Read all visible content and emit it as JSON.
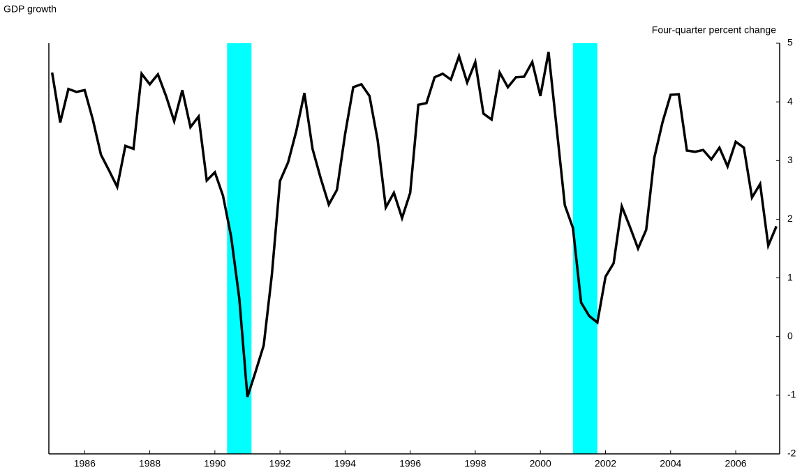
{
  "chart_data": {
    "type": "line",
    "title": "GDP growth",
    "y_axis_label": "Four-quarter percent change",
    "x": [
      1985,
      1985.25,
      1985.5,
      1985.75,
      1986,
      1986.25,
      1986.5,
      1986.75,
      1987,
      1987.25,
      1987.5,
      1987.75,
      1988,
      1988.25,
      1988.5,
      1988.75,
      1989,
      1989.25,
      1989.5,
      1989.75,
      1990,
      1990.25,
      1990.5,
      1990.75,
      1991,
      1991.25,
      1991.5,
      1991.75,
      1992,
      1992.25,
      1992.5,
      1992.75,
      1993,
      1993.25,
      1993.5,
      1993.75,
      1994,
      1994.25,
      1994.5,
      1994.75,
      1995,
      1995.25,
      1995.5,
      1995.75,
      1996,
      1996.25,
      1996.5,
      1996.75,
      1997,
      1997.25,
      1997.5,
      1997.75,
      1998,
      1998.25,
      1998.5,
      1998.75,
      1999,
      1999.25,
      1999.5,
      1999.75,
      2000,
      2000.25,
      2000.5,
      2000.75,
      2001,
      2001.25,
      2001.5,
      2001.75,
      2002,
      2002.25,
      2002.5,
      2002.75,
      2003,
      2003.25,
      2003.5,
      2003.75,
      2004,
      2004.25,
      2004.5,
      2004.75,
      2005,
      2005.25,
      2005.5,
      2005.75,
      2006,
      2006.25,
      2006.5,
      2006.75,
      2007,
      2007.25
    ],
    "series": [
      {
        "color": "#000000",
        "values": [
          4.5,
          3.65,
          4.22,
          4.17,
          4.2,
          3.7,
          3.1,
          2.83,
          2.55,
          3.25,
          3.2,
          4.48,
          4.3,
          4.47,
          4.1,
          3.67,
          4.2,
          3.57,
          3.75,
          2.66,
          2.8,
          2.4,
          1.7,
          0.65,
          -1.03,
          -0.6,
          -0.15,
          1.05,
          2.65,
          2.97,
          3.5,
          4.15,
          3.2,
          2.7,
          2.25,
          2.5,
          3.45,
          4.25,
          4.3,
          4.1,
          3.35,
          2.2,
          2.45,
          2.02,
          2.45,
          3.95,
          3.98,
          4.42,
          4.48,
          4.38,
          4.78,
          4.33,
          4.68,
          3.8,
          3.7,
          4.5,
          4.25,
          4.42,
          4.43,
          4.68,
          4.1,
          4.85,
          3.55,
          2.24,
          1.85,
          0.58,
          0.35,
          0.24,
          1.02,
          1.25,
          2.22,
          1.87,
          1.5,
          1.82,
          3.05,
          3.65,
          4.12,
          4.13,
          3.17,
          3.15,
          3.18,
          3.02,
          3.22,
          2.9,
          3.32,
          3.22,
          2.37,
          2.6,
          1.55,
          1.88
        ]
      }
    ],
    "shaded_regions": [
      [
        1990.375,
        1991.125
      ],
      [
        2001,
        2001.75
      ]
    ],
    "shade_color": "#00ffff",
    "xlim": [
      1984.9,
      2007.35
    ],
    "xticks": [
      1986,
      1988,
      1990,
      1992,
      1994,
      1996,
      1998,
      2000,
      2002,
      2004,
      2006
    ],
    "ylim": [
      -2,
      5
    ],
    "yticks": [
      -2,
      -1,
      0,
      1,
      2,
      3,
      4,
      5
    ],
    "y_axis_side": "right",
    "grid": false
  }
}
